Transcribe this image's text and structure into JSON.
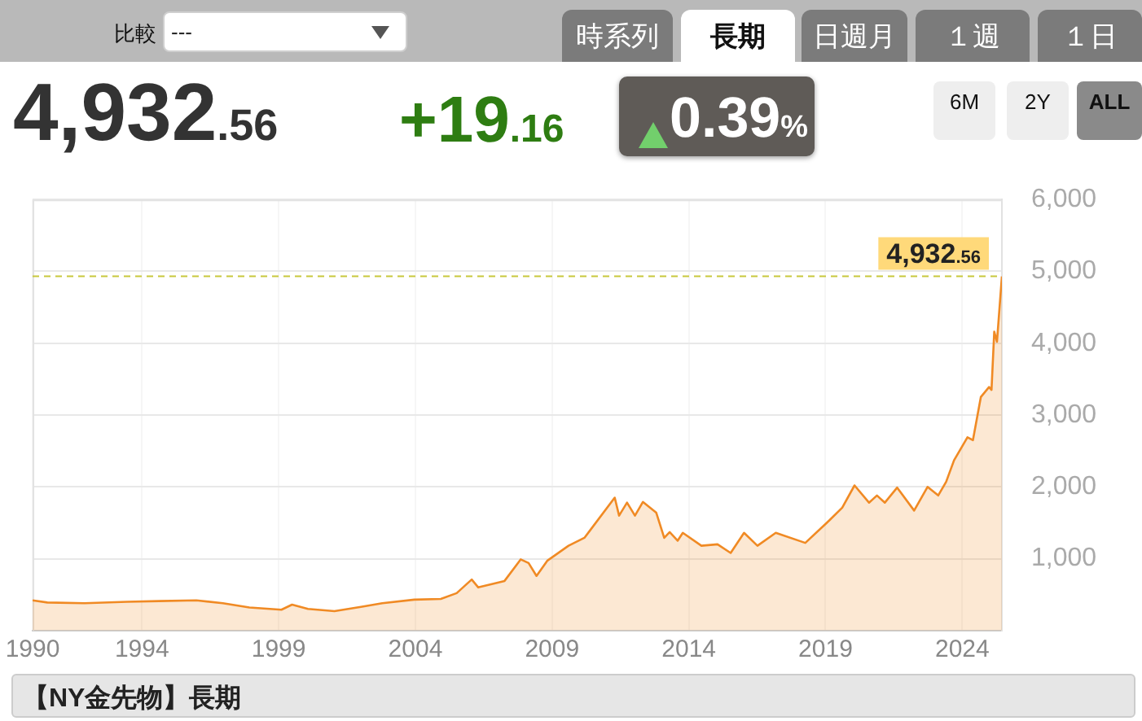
{
  "chart_data": {
    "type": "area",
    "title": "【NY金先物】長期",
    "annotations": [
      "比較",
      "---",
      "時系列",
      "長期",
      "日週月",
      "１週",
      "１日",
      "4,932.56",
      "+19.16",
      "0.39%",
      "6M",
      "2Y",
      "ALL"
    ],
    "x": [
      1990,
      1990.54,
      1991.9,
      1993.46,
      1994.63,
      1995.99,
      1996.96,
      1997.93,
      1999.1,
      1999.49,
      2000.07,
      2001.04,
      2002.01,
      2002.79,
      2003.96,
      2004.93,
      2005.51,
      2006.06,
      2006.3,
      2007.26,
      2007.85,
      2008.14,
      2008.43,
      2008.82,
      2009.6,
      2010.18,
      2010.38,
      2011.29,
      2011.45,
      2011.74,
      2012.03,
      2012.32,
      2012.81,
      2013.1,
      2013.3,
      2013.59,
      2013.78,
      2014.46,
      2015.05,
      2015.53,
      2016.02,
      2016.51,
      2017.18,
      2018.26,
      2019.13,
      2019.61,
      2020.06,
      2020.59,
      2020.88,
      2021.17,
      2021.62,
      2022.24,
      2022.73,
      2023.12,
      2023.41,
      2023.7,
      2024.19,
      2024.39,
      2024.68,
      2024.98,
      2025.07,
      2025.17,
      2025.27,
      2025.45
    ],
    "values": [
      420,
      390,
      380,
      400,
      410,
      420,
      380,
      320,
      290,
      360,
      300,
      270,
      330,
      380,
      430,
      440,
      520,
      710,
      600,
      690,
      990,
      940,
      760,
      970,
      1180,
      1290,
      1390,
      1850,
      1600,
      1780,
      1600,
      1790,
      1640,
      1290,
      1370,
      1250,
      1360,
      1180,
      1200,
      1080,
      1360,
      1180,
      1360,
      1220,
      1530,
      1710,
      2020,
      1780,
      1880,
      1780,
      1990,
      1670,
      2000,
      1880,
      2070,
      2370,
      2690,
      2650,
      3250,
      3390,
      3350,
      4160,
      4020,
      4930
    ],
    "color": "#f08a24",
    "xlim": [
      1990,
      2025.45
    ],
    "xticks": [
      1990,
      1994,
      1999,
      2004,
      2009,
      2014,
      2019,
      2024
    ],
    "ylim": [
      0,
      6000
    ],
    "yticks": [
      {
        "value": 1000,
        "label": "1,000"
      },
      {
        "value": 2000,
        "label": "2,000"
      },
      {
        "value": 3000,
        "label": "3,000"
      },
      {
        "value": 4000,
        "label": "4,000"
      },
      {
        "value": 5000,
        "label": "5,000"
      },
      {
        "value": 6000,
        "label": "6,000"
      }
    ],
    "ref_lines": [
      {
        "axis": "y",
        "value": 4932.56,
        "label": "4,932.56",
        "color": "#c8c83c",
        "line_style": "dashed"
      }
    ],
    "grid": true
  }
}
